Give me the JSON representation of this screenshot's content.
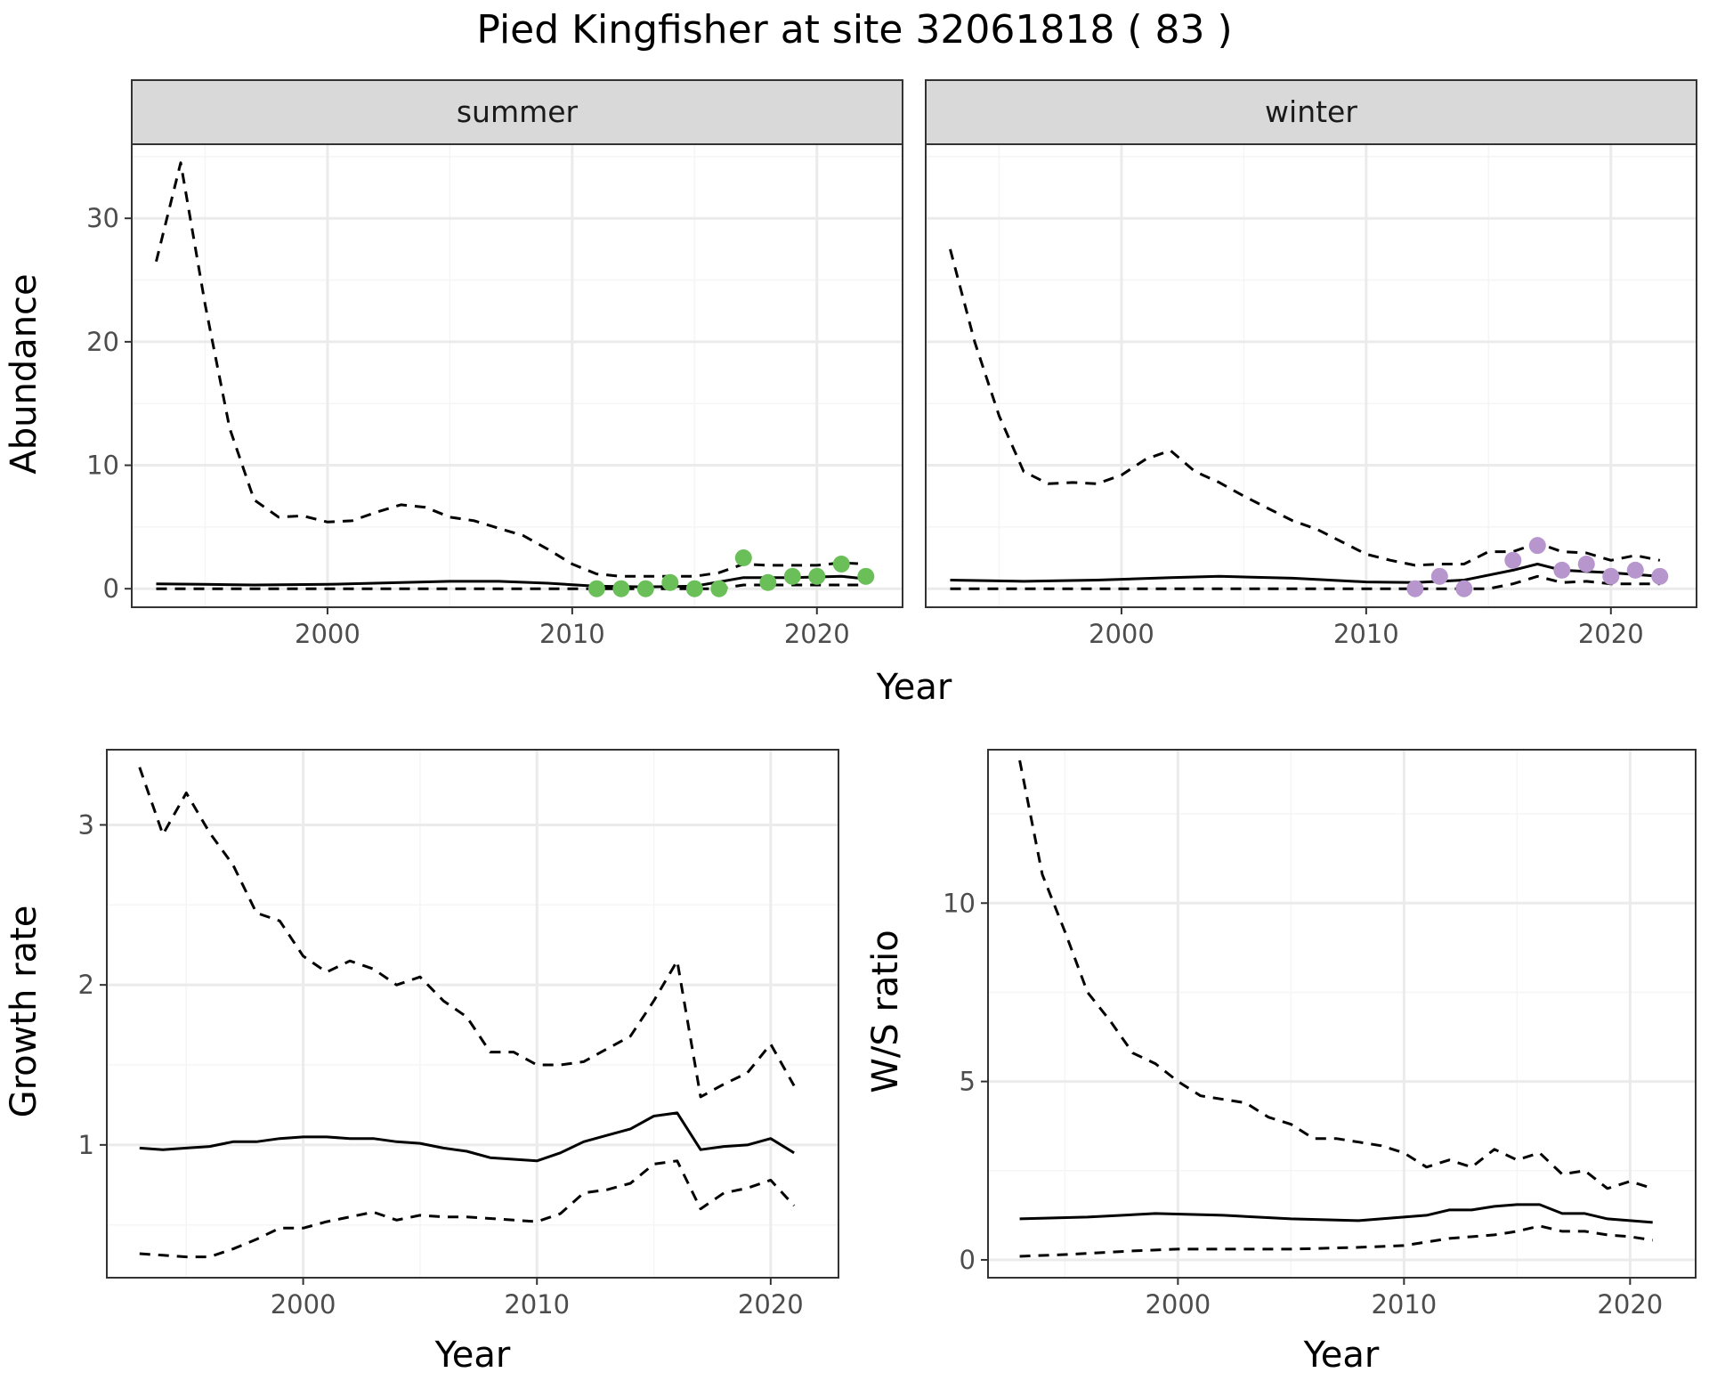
{
  "figure": {
    "title": "Pied Kingfisher at site 32061818 ( 83 )",
    "colors": {
      "line": "#000000",
      "grid_major": "#ebebeb",
      "grid_minor": "#f5f5f5",
      "strip_fill": "#d9d9d9",
      "summer_points": "#6abf59",
      "winter_points": "#b795cd"
    }
  },
  "chart_data": [
    {
      "id": "summer",
      "type": "line",
      "panel": "summer",
      "xlabel": "Year",
      "ylabel": "Abundance",
      "xlim": [
        1992,
        2023.5
      ],
      "ylim": [
        -1.5,
        36
      ],
      "x_ticks": [
        2000,
        2010,
        2020
      ],
      "y_ticks": [
        0,
        10,
        20,
        30
      ],
      "grid": true,
      "series": [
        {
          "role": "estimate",
          "style": "solid",
          "x": [
            1993,
            1995,
            1997,
            2000,
            2003,
            2005,
            2007,
            2009,
            2011,
            2013,
            2015,
            2017,
            2019,
            2021,
            2022
          ],
          "y": [
            0.4,
            0.35,
            0.3,
            0.35,
            0.5,
            0.6,
            0.6,
            0.45,
            0.2,
            0.15,
            0.2,
            0.9,
            0.9,
            1.0,
            0.8
          ]
        },
        {
          "role": "upper",
          "style": "dashed",
          "x": [
            1993,
            1994,
            1995,
            1996,
            1997,
            1998,
            1999,
            2000,
            2001,
            2002,
            2003,
            2004,
            2005,
            2006,
            2007,
            2008,
            2009,
            2010,
            2011,
            2012,
            2013,
            2014,
            2015,
            2016,
            2017,
            2018,
            2019,
            2020,
            2021,
            2022
          ],
          "y": [
            26.5,
            34.5,
            23,
            13,
            7.2,
            5.8,
            5.9,
            5.4,
            5.5,
            6.2,
            6.8,
            6.6,
            5.8,
            5.5,
            4.9,
            4.3,
            3.2,
            2.0,
            1.2,
            1.0,
            1.0,
            1.0,
            1.0,
            1.3,
            2.0,
            1.9,
            1.9,
            1.9,
            2.1,
            2.0
          ]
        },
        {
          "role": "lower",
          "style": "dashed",
          "x": [
            1993,
            2000,
            2005,
            2010,
            2013,
            2016,
            2017,
            2019,
            2021,
            2022
          ],
          "y": [
            0,
            0,
            0,
            0,
            0,
            0,
            0.3,
            0.3,
            0.3,
            0.3
          ]
        }
      ],
      "points": {
        "x": [
          2011,
          2012,
          2013,
          2014,
          2015,
          2016,
          2017,
          2018,
          2019,
          2020,
          2021,
          2022
        ],
        "y": [
          0,
          0,
          0,
          0.5,
          0,
          0,
          2.5,
          0.5,
          1,
          1,
          2,
          1
        ]
      }
    },
    {
      "id": "winter",
      "type": "line",
      "panel": "winter",
      "xlabel": "Year",
      "ylabel": "Abundance",
      "xlim": [
        1992,
        2023.5
      ],
      "ylim": [
        -1.5,
        36
      ],
      "x_ticks": [
        2000,
        2010,
        2020
      ],
      "y_ticks": [
        0,
        10,
        20,
        30
      ],
      "grid": true,
      "series": [
        {
          "role": "estimate",
          "style": "solid",
          "x": [
            1993,
            1996,
            1999,
            2002,
            2004,
            2007,
            2010,
            2012,
            2014,
            2016,
            2017,
            2018,
            2020,
            2022
          ],
          "y": [
            0.7,
            0.6,
            0.7,
            0.9,
            1.0,
            0.85,
            0.55,
            0.5,
            0.7,
            1.5,
            2.0,
            1.5,
            1.3,
            1.0
          ]
        },
        {
          "role": "upper",
          "style": "dashed",
          "x": [
            1993,
            1994,
            1995,
            1996,
            1997,
            1998,
            1999,
            2000,
            2001,
            2002,
            2003,
            2004,
            2005,
            2006,
            2007,
            2008,
            2009,
            2010,
            2011,
            2012,
            2013,
            2014,
            2015,
            2016,
            2017,
            2018,
            2019,
            2020,
            2021,
            2022
          ],
          "y": [
            27.5,
            20,
            14,
            9.5,
            8.5,
            8.6,
            8.5,
            9.2,
            10.5,
            11.2,
            9.5,
            8.6,
            7.5,
            6.5,
            5.5,
            4.8,
            3.8,
            2.8,
            2.3,
            1.9,
            2.0,
            2.0,
            3.0,
            3.0,
            3.7,
            3.0,
            2.9,
            2.3,
            2.7,
            2.3
          ]
        },
        {
          "role": "lower",
          "style": "dashed",
          "x": [
            1993,
            2000,
            2005,
            2010,
            2013,
            2014,
            2015,
            2016,
            2017,
            2018,
            2019,
            2020,
            2021,
            2022
          ],
          "y": [
            0,
            0,
            0,
            0,
            0,
            0,
            0,
            0.4,
            1.0,
            0.5,
            0.6,
            0.4,
            0.4,
            0.4
          ]
        }
      ],
      "points": {
        "x": [
          2012,
          2013,
          2014,
          2016,
          2017,
          2018,
          2019,
          2020,
          2021,
          2022
        ],
        "y": [
          0,
          1,
          0,
          2.3,
          3.5,
          1.5,
          2,
          1,
          1.5,
          1
        ]
      }
    },
    {
      "id": "growth",
      "type": "line",
      "xlabel": "Year",
      "ylabel": "Growth rate",
      "xlim": [
        1991.6,
        2022.9
      ],
      "ylim": [
        0.17,
        3.47
      ],
      "x_ticks": [
        2000,
        2010,
        2020
      ],
      "y_ticks": [
        1,
        2,
        3
      ],
      "grid": true,
      "series": [
        {
          "role": "estimate",
          "style": "solid",
          "x": [
            1993,
            1994,
            1995,
            1996,
            1997,
            1998,
            1999,
            2000,
            2001,
            2002,
            2003,
            2004,
            2005,
            2006,
            2007,
            2008,
            2009,
            2010,
            2011,
            2012,
            2013,
            2014,
            2015,
            2016,
            2017,
            2018,
            2019,
            2020,
            2021
          ],
          "y": [
            0.98,
            0.97,
            0.98,
            0.99,
            1.02,
            1.02,
            1.04,
            1.05,
            1.05,
            1.04,
            1.04,
            1.02,
            1.01,
            0.98,
            0.96,
            0.92,
            0.91,
            0.9,
            0.95,
            1.02,
            1.06,
            1.1,
            1.18,
            1.2,
            0.97,
            0.99,
            1.0,
            1.04,
            0.95
          ]
        },
        {
          "role": "upper",
          "style": "dashed",
          "x": [
            1993,
            1994,
            1995,
            1996,
            1997,
            1998,
            1999,
            2000,
            2001,
            2002,
            2003,
            2004,
            2005,
            2006,
            2007,
            2008,
            2009,
            2010,
            2011,
            2012,
            2013,
            2014,
            2015,
            2016,
            2017,
            2018,
            2019,
            2020,
            2021
          ],
          "y": [
            3.36,
            2.94,
            3.2,
            2.95,
            2.75,
            2.45,
            2.4,
            2.18,
            2.08,
            2.15,
            2.1,
            2.0,
            2.05,
            1.9,
            1.8,
            1.58,
            1.58,
            1.5,
            1.5,
            1.52,
            1.6,
            1.68,
            1.9,
            2.15,
            1.3,
            1.38,
            1.45,
            1.63,
            1.37
          ]
        },
        {
          "role": "lower",
          "style": "dashed",
          "x": [
            1993,
            1994,
            1995,
            1996,
            1997,
            1998,
            1999,
            2000,
            2001,
            2002,
            2003,
            2004,
            2005,
            2006,
            2007,
            2008,
            2009,
            2010,
            2011,
            2012,
            2013,
            2014,
            2015,
            2016,
            2017,
            2018,
            2019,
            2020,
            2021
          ],
          "y": [
            0.32,
            0.31,
            0.3,
            0.3,
            0.35,
            0.41,
            0.48,
            0.48,
            0.52,
            0.55,
            0.58,
            0.53,
            0.56,
            0.55,
            0.55,
            0.54,
            0.53,
            0.52,
            0.57,
            0.7,
            0.72,
            0.76,
            0.88,
            0.9,
            0.6,
            0.7,
            0.73,
            0.78,
            0.62
          ]
        }
      ]
    },
    {
      "id": "ratio",
      "type": "line",
      "xlabel": "Year",
      "ylabel": "W/S ratio",
      "xlim": [
        1991.6,
        2022.9
      ],
      "ylim": [
        -0.5,
        14.3
      ],
      "x_ticks": [
        2000,
        2010,
        2020
      ],
      "y_ticks": [
        0,
        5,
        10
      ],
      "grid": true,
      "series": [
        {
          "role": "estimate",
          "style": "solid",
          "x": [
            1993,
            1996,
            1999,
            2002,
            2005,
            2008,
            2010,
            2011,
            2012,
            2013,
            2014,
            2015,
            2016,
            2017,
            2018,
            2019,
            2020,
            2021
          ],
          "y": [
            1.15,
            1.2,
            1.3,
            1.25,
            1.15,
            1.1,
            1.2,
            1.25,
            1.4,
            1.4,
            1.5,
            1.55,
            1.55,
            1.3,
            1.3,
            1.15,
            1.1,
            1.05
          ]
        },
        {
          "role": "upper",
          "style": "dashed",
          "x": [
            1993,
            1994,
            1995,
            1996,
            1997,
            1998,
            1999,
            2000,
            2001,
            2002,
            2003,
            2004,
            2005,
            2006,
            2007,
            2008,
            2009,
            2010,
            2011,
            2012,
            2013,
            2014,
            2015,
            2016,
            2017,
            2018,
            2019,
            2020,
            2021
          ],
          "y": [
            14,
            10.8,
            9.2,
            7.5,
            6.7,
            5.8,
            5.5,
            5.0,
            4.6,
            4.5,
            4.4,
            4.0,
            3.8,
            3.4,
            3.4,
            3.3,
            3.2,
            3.0,
            2.6,
            2.8,
            2.6,
            3.1,
            2.8,
            3.0,
            2.4,
            2.5,
            2.0,
            2.2,
            2.0
          ]
        },
        {
          "role": "lower",
          "style": "dashed",
          "x": [
            1993,
            1995,
            1998,
            2000,
            2005,
            2008,
            2010,
            2012,
            2014,
            2015,
            2016,
            2017,
            2018,
            2019,
            2020,
            2021
          ],
          "y": [
            0.1,
            0.15,
            0.25,
            0.3,
            0.3,
            0.35,
            0.4,
            0.6,
            0.7,
            0.8,
            0.95,
            0.8,
            0.8,
            0.7,
            0.65,
            0.55
          ]
        }
      ]
    }
  ]
}
